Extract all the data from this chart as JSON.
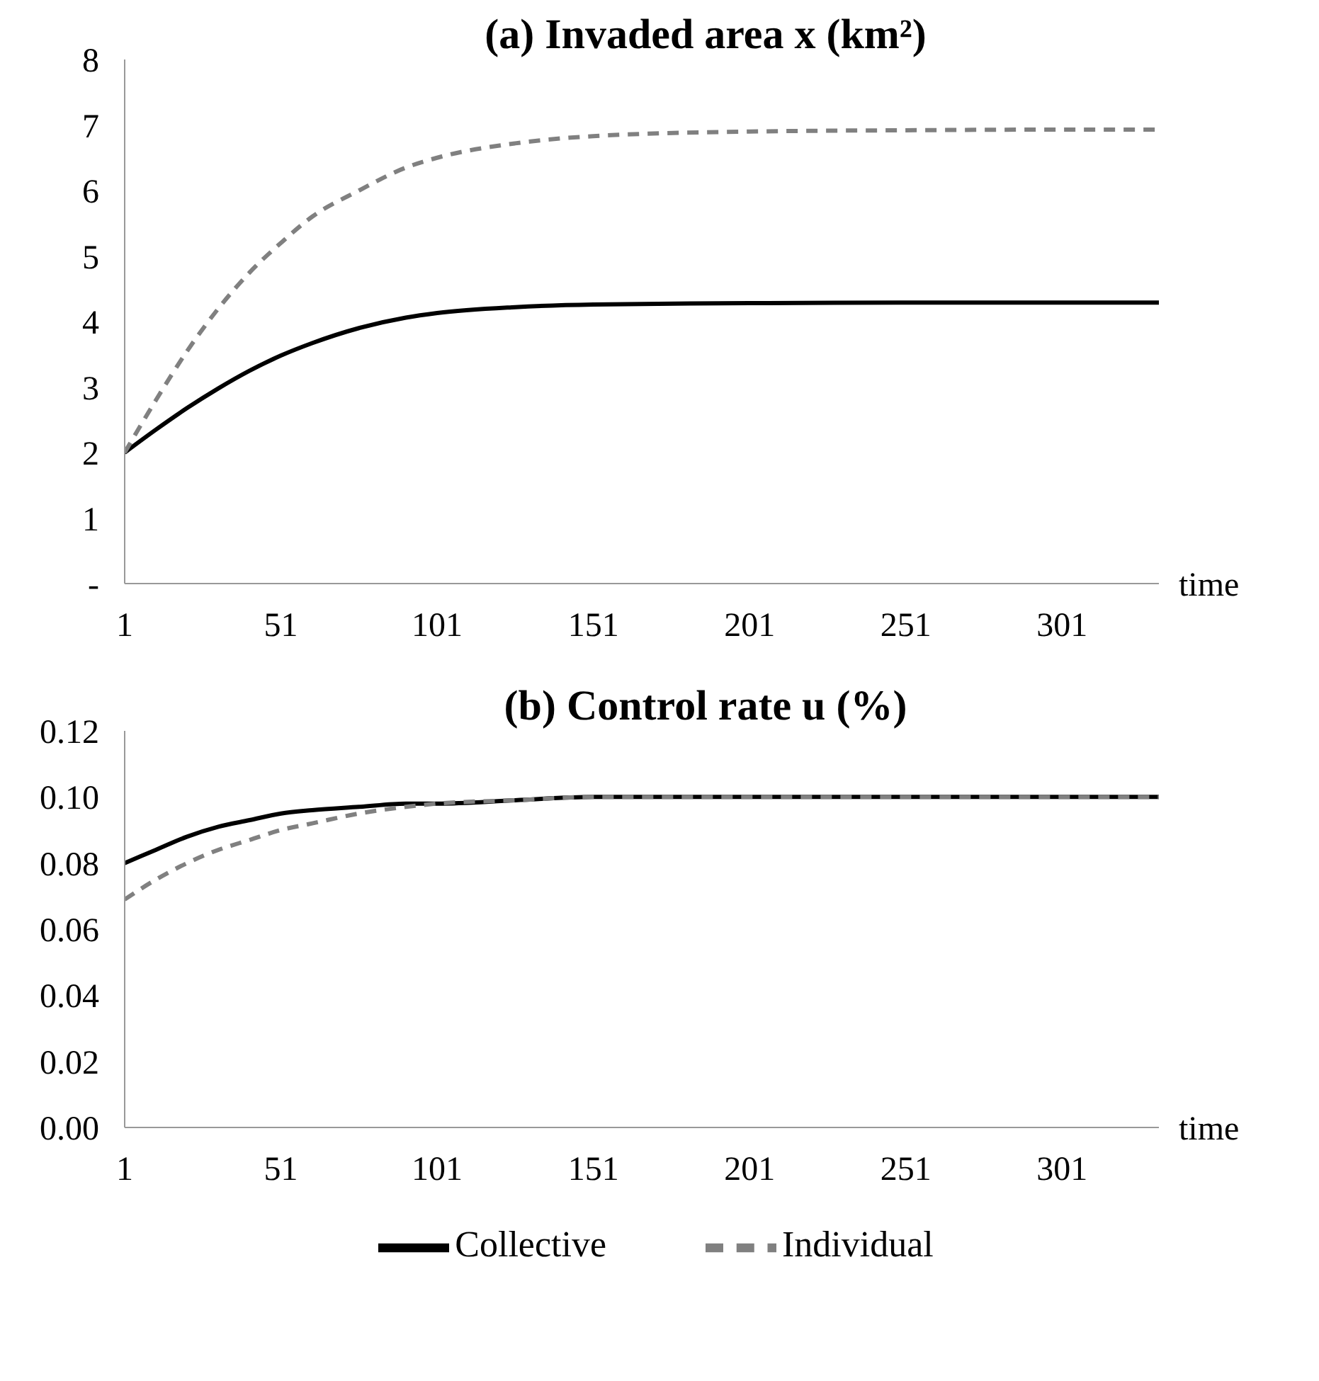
{
  "chart_data": [
    {
      "type": "line",
      "title": "(a) Invaded area x (km²)",
      "xlabel": "time",
      "x": [
        1,
        11,
        21,
        31,
        41,
        51,
        61,
        76,
        91,
        101,
        126,
        151,
        201,
        251,
        301,
        332
      ],
      "xlim": [
        1,
        332
      ],
      "xticks": [
        1,
        51,
        101,
        151,
        201,
        251,
        301
      ],
      "ylim": [
        0,
        8
      ],
      "yticks": [
        {
          "value": 0,
          "label": "-"
        },
        1,
        2,
        3,
        4,
        5,
        6,
        7,
        8
      ],
      "grid": false,
      "legend": false,
      "marker": "none",
      "series": [
        {
          "color": "#000000",
          "line_style": "solid",
          "values": [
            2,
            2.35,
            2.68,
            2.98,
            3.25,
            3.48,
            3.67,
            3.9,
            4.06,
            4.13,
            4.22,
            4.26,
            4.28,
            4.29,
            4.29,
            4.29
          ]
        },
        {
          "color": "#808080",
          "line_style": "dashed",
          "values": [
            2,
            2.8,
            3.55,
            4.2,
            4.75,
            5.2,
            5.6,
            6.0,
            6.35,
            6.5,
            6.72,
            6.83,
            6.9,
            6.92,
            6.93,
            6.93
          ]
        }
      ]
    },
    {
      "type": "line",
      "title": "(b) Control rate u (%)",
      "xlabel": "time",
      "x": [
        1,
        11,
        21,
        31,
        41,
        51,
        61,
        76,
        91,
        101,
        126,
        151,
        201,
        251,
        301,
        332
      ],
      "xlim": [
        1,
        332
      ],
      "xticks": [
        1,
        51,
        101,
        151,
        201,
        251,
        301
      ],
      "ylim": [
        0,
        0.12
      ],
      "yticks": [
        {
          "value": 0,
          "label": "0.00"
        },
        {
          "value": 0.02,
          "label": "0.02"
        },
        {
          "value": 0.04,
          "label": "0.04"
        },
        {
          "value": 0.06,
          "label": "0.06"
        },
        {
          "value": 0.08,
          "label": "0.08"
        },
        {
          "value": 0.1,
          "label": "0.10"
        },
        {
          "value": 0.12,
          "label": "0.12"
        }
      ],
      "grid": false,
      "legend": "bottom",
      "marker": "none",
      "series": [
        {
          "name": "Collective",
          "color": "#000000",
          "line_style": "solid",
          "values": [
            0.08,
            0.084,
            0.088,
            0.091,
            0.093,
            0.095,
            0.096,
            0.097,
            0.098,
            0.098,
            0.099,
            0.1,
            0.1,
            0.1,
            0.1,
            0.1
          ]
        },
        {
          "name": "Individual",
          "color": "#808080",
          "line_style": "dashed",
          "values": [
            0.069,
            0.075,
            0.08,
            0.084,
            0.087,
            0.09,
            0.092,
            0.095,
            0.097,
            0.098,
            0.099,
            0.1,
            0.1,
            0.1,
            0.1,
            0.1
          ]
        }
      ]
    }
  ]
}
